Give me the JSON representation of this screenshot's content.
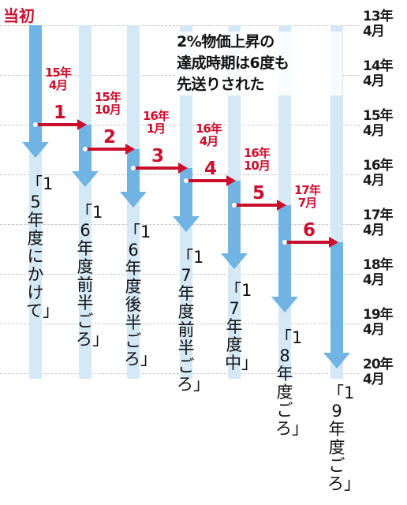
{
  "start_label": "当初",
  "headline": [
    "2%物価上昇の",
    "達成時期は6度も",
    "先送りされた"
  ],
  "timeline": [
    {
      "year": "13年",
      "month": "4月"
    },
    {
      "year": "14年",
      "month": "4月"
    },
    {
      "year": "15年",
      "month": "4月"
    },
    {
      "year": "16年",
      "month": "4月"
    },
    {
      "year": "17年",
      "month": "4月"
    },
    {
      "year": "18年",
      "month": "4月"
    },
    {
      "year": "19年",
      "month": "4月"
    },
    {
      "year": "20年",
      "month": "4月"
    }
  ],
  "targets": [
    "「15年度にかけて」",
    "「16年度前半ごろ」",
    "「16年度後半ごろ」",
    "「17年度前半ごろ」",
    "「17年度中」",
    "「18年度ごろ」",
    "「19年度ごろ」"
  ],
  "postponements": [
    {
      "number": "1",
      "year": "15年",
      "month": "4月"
    },
    {
      "number": "2",
      "year": "15年",
      "month": "10月"
    },
    {
      "number": "3",
      "year": "16年",
      "month": "1月"
    },
    {
      "number": "4",
      "year": "16年",
      "month": "4月"
    },
    {
      "number": "5",
      "year": "16年",
      "month": "10月"
    },
    {
      "number": "6",
      "year": "17年",
      "month": "7月"
    }
  ],
  "colors": {
    "accent_red": "#c8102e",
    "arrow_blue": "#6fb4e2",
    "track_blue": "#d4e8f6"
  }
}
